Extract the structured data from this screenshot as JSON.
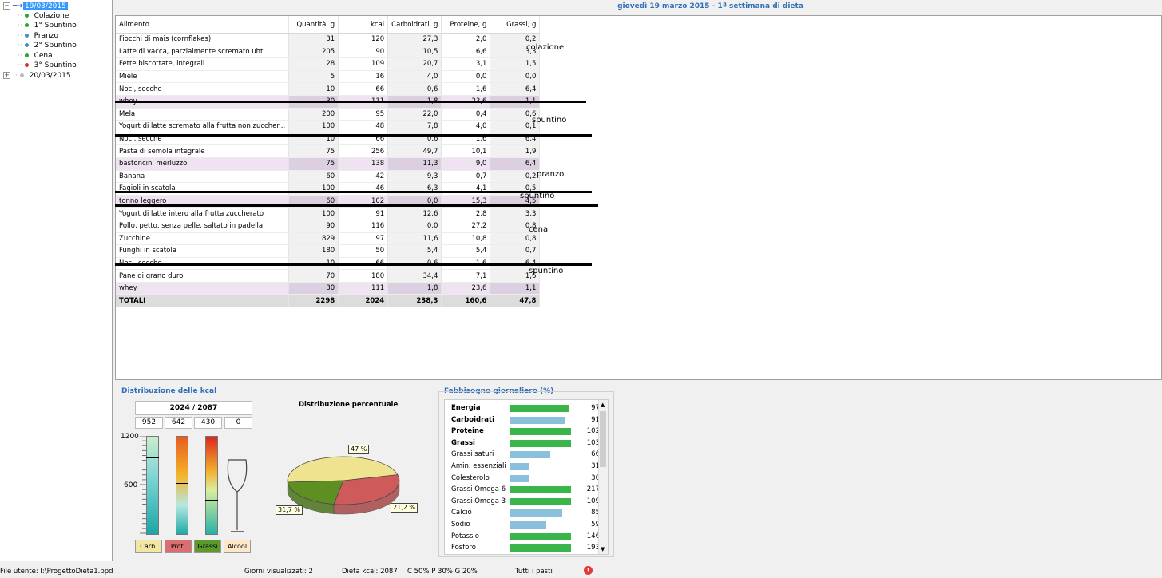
{
  "tree": {
    "date1": "19/03/2015",
    "meals": [
      {
        "label": "Colazione",
        "color": "#22aa22"
      },
      {
        "label": "1° Spuntino",
        "color": "#22aa22"
      },
      {
        "label": "Pranzo",
        "color": "#3c8fd0"
      },
      {
        "label": "2° Spuntino",
        "color": "#3c8fd0"
      },
      {
        "label": "Cena",
        "color": "#22aa22"
      },
      {
        "label": "3° Spuntino",
        "color": "#cc3333"
      }
    ],
    "date2": "20/03/2015"
  },
  "header": "giovedì 19 marzo 2015 - 1ª settimana di dieta",
  "table": {
    "columns": [
      "Alimento",
      "Quantità, g",
      "kcal",
      "Carboidrati, g",
      "Proteine, g",
      "Grassi, g"
    ],
    "rows": [
      {
        "name": "Fiocchi di mais (cornflakes)",
        "q": "31",
        "kcal": "120",
        "c": "27,3",
        "p": "2,0",
        "g": "0,2"
      },
      {
        "name": "Latte di vacca, parzialmente scremato uht",
        "q": "205",
        "kcal": "90",
        "c": "10,5",
        "p": "6,6",
        "g": "3,3"
      },
      {
        "name": "Fette biscottate, integrali",
        "q": "28",
        "kcal": "109",
        "c": "20,7",
        "p": "3,1",
        "g": "1,5"
      },
      {
        "name": "Miele",
        "q": "5",
        "kcal": "16",
        "c": "4,0",
        "p": "0,0",
        "g": "0,0"
      },
      {
        "name": "Noci, secche",
        "q": "10",
        "kcal": "66",
        "c": "0,6",
        "p": "1,6",
        "g": "6,4"
      },
      {
        "name": "whey",
        "q": "30",
        "kcal": "111",
        "c": "1,8",
        "p": "23,6",
        "g": "1,1",
        "pink": true
      },
      {
        "name": "Mela",
        "q": "200",
        "kcal": "95",
        "c": "22,0",
        "p": "0,4",
        "g": "0,6"
      },
      {
        "name": "Yogurt di latte scremato alla frutta non zuccher...",
        "q": "100",
        "kcal": "48",
        "c": "7,8",
        "p": "4,0",
        "g": "0,1"
      },
      {
        "name": "Noci, secche",
        "q": "10",
        "kcal": "66",
        "c": "0,6",
        "p": "1,6",
        "g": "6,4"
      },
      {
        "name": "Pasta di semola integrale",
        "q": "75",
        "kcal": "256",
        "c": "49,7",
        "p": "10,1",
        "g": "1,9"
      },
      {
        "name": "bastoncini merluzzo",
        "q": "75",
        "kcal": "138",
        "c": "11,3",
        "p": "9,0",
        "g": "6,4",
        "pink": true
      },
      {
        "name": "Banana",
        "q": "60",
        "kcal": "42",
        "c": "9,3",
        "p": "0,7",
        "g": "0,2"
      },
      {
        "name": "Fagioli in scatola",
        "q": "100",
        "kcal": "46",
        "c": "6,3",
        "p": "4,1",
        "g": "0,5"
      },
      {
        "name": "tonno leggero",
        "q": "60",
        "kcal": "102",
        "c": "0,0",
        "p": "15,3",
        "g": "4,5",
        "pink": true
      },
      {
        "name": "Yogurt di latte intero alla frutta zuccherato",
        "q": "100",
        "kcal": "91",
        "c": "12,6",
        "p": "2,8",
        "g": "3,3"
      },
      {
        "name": "Pollo, petto, senza pelle, saltato in padella",
        "q": "90",
        "kcal": "116",
        "c": "0,0",
        "p": "27,2",
        "g": "0,8"
      },
      {
        "name": "Zucchine",
        "q": "829",
        "kcal": "97",
        "c": "11,6",
        "p": "10,8",
        "g": "0,8"
      },
      {
        "name": "Funghi in scatola",
        "q": "180",
        "kcal": "50",
        "c": "5,4",
        "p": "5,4",
        "g": "0,7"
      },
      {
        "name": "Noci, secche",
        "q": "10",
        "kcal": "66",
        "c": "0,6",
        "p": "1,6",
        "g": "6,4"
      },
      {
        "name": "Pane di grano duro",
        "q": "70",
        "kcal": "180",
        "c": "34,4",
        "p": "7,1",
        "g": "1,6"
      },
      {
        "name": "whey",
        "q": "30",
        "kcal": "111",
        "c": "1,8",
        "p": "23,6",
        "g": "1,1",
        "pink": true
      }
    ],
    "total": {
      "name": "TOTALI",
      "q": "2298",
      "kcal": "2024",
      "c": "238,3",
      "p": "160,6",
      "g": "47,8"
    }
  },
  "notes": [
    "colazione",
    "spuntino",
    "pranzo",
    "spuntino",
    "cena",
    "spuntino"
  ],
  "kcal_panel": {
    "title": "Distribuzione delle kcal",
    "summary": "2024 / 2087",
    "values": [
      "952",
      "642",
      "430",
      "0"
    ],
    "scale_top": "1200",
    "scale_mid": "600",
    "tags": [
      "Carb.",
      "Prot.",
      "Grassi",
      "Alcool"
    ],
    "tag_colors": [
      "#f3e6a2",
      "#d9706f",
      "#5c9a2e",
      "#fde7c9"
    ],
    "levels": [
      0.79,
      0.535,
      0.36,
      0
    ]
  },
  "pie": {
    "title": "Distribuzione percentuale",
    "slices": [
      {
        "label": "47 %",
        "value": 47,
        "color": "#efe38f"
      },
      {
        "label": "31,7 %",
        "value": 31.7,
        "color": "#cf5a5a"
      },
      {
        "label": "21,2 %",
        "value": 21.2,
        "color": "#5d8f22"
      }
    ]
  },
  "fabbisogno": {
    "title": "Fabbisogno giornaliero (%)",
    "rows": [
      {
        "name": "Energia",
        "value": "97",
        "pct": 97,
        "bold": true
      },
      {
        "name": "Carboidrati",
        "value": "91",
        "pct": 91,
        "bold": true
      },
      {
        "name": "Proteine",
        "value": "102",
        "pct": 102,
        "bold": true
      },
      {
        "name": "Grassi",
        "value": "103",
        "pct": 103,
        "bold": true
      },
      {
        "name": "Grassi saturi",
        "value": "66",
        "pct": 66
      },
      {
        "name": "Amin. essenziali",
        "value": "31",
        "pct": 31
      },
      {
        "name": "Colesterolo",
        "value": "30",
        "pct": 30
      },
      {
        "name": "Grassi Omega 6",
        "value": "217",
        "pct": 217
      },
      {
        "name": "Grassi Omega 3",
        "value": "109",
        "pct": 109
      },
      {
        "name": "Calcio",
        "value": "85",
        "pct": 85
      },
      {
        "name": "Sodio",
        "value": "59",
        "pct": 59
      },
      {
        "name": "Potassio",
        "value": "146",
        "pct": 146
      },
      {
        "name": "Fosforo",
        "value": "193",
        "pct": 193
      }
    ],
    "green": "#39b54a",
    "blue": "#8ac0dc"
  },
  "status": {
    "file": "File utente: I:\\ProgettoDieta1.ppd",
    "days": "Giorni visualizzati: 2",
    "dieta": "Dieta kcal: 2087",
    "ratio": "C 50%   P 30%   G 20%",
    "pasti": "Tutti i pasti"
  }
}
